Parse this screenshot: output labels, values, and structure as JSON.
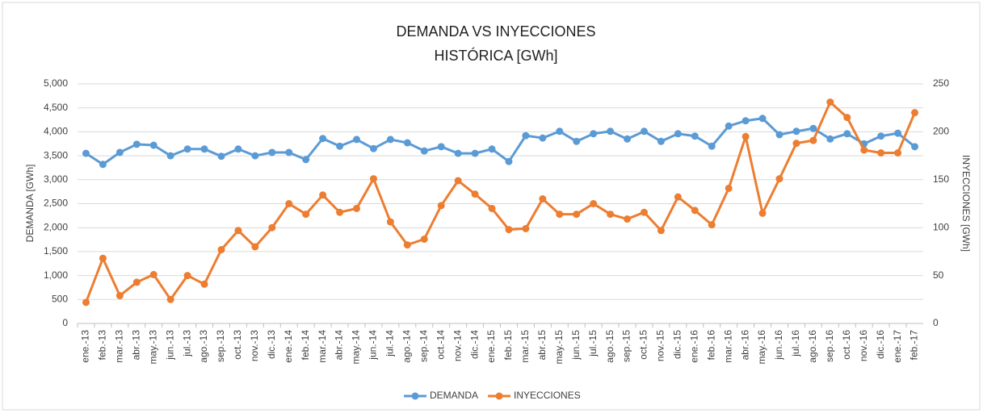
{
  "chart_data": {
    "type": "line",
    "title": "DEMANDA VS INYECCIONES",
    "subtitle": "HISTÓRICA [GWh]",
    "y_label": "DEMANDA [GWh]",
    "y2_label": "INYECCIONES [GWh]",
    "categories": [
      "ene.-13",
      "feb.-13",
      "mar.-13",
      "abr.-13",
      "may.-13",
      "jun.-13",
      "jul.-13",
      "ago.-13",
      "sep.-13",
      "oct.-13",
      "nov.-13",
      "dic.-13",
      "ene.-14",
      "feb.-14",
      "mar.-14",
      "abr.-14",
      "may.-14",
      "jun.-14",
      "jul.-14",
      "ago.-14",
      "sep.-14",
      "oct.-14",
      "nov.-14",
      "dic.-14",
      "ene.-15",
      "feb.-15",
      "mar.-15",
      "abr.-15",
      "may.-15",
      "jun.-15",
      "jul.-15",
      "ago.-15",
      "sep.-15",
      "oct.-15",
      "nov.-15",
      "dic.-15",
      "ene.-16",
      "feb.-16",
      "mar.-16",
      "abr.-16",
      "may.-16",
      "jun.-16",
      "jul.-16",
      "ago.-16",
      "sep.-16",
      "oct.-16",
      "nov.-16",
      "dic.-16",
      "ene.-17",
      "feb.-17"
    ],
    "series": [
      {
        "name": "DEMANDA",
        "color": "#5b9bd5",
        "values": [
          3550,
          3320,
          3570,
          3740,
          3720,
          3500,
          3640,
          3640,
          3490,
          3640,
          3500,
          3570,
          3570,
          3420,
          3860,
          3700,
          3840,
          3650,
          3840,
          3770,
          3600,
          3690,
          3550,
          3550,
          3640,
          3380,
          3920,
          3870,
          4010,
          3800,
          3960,
          4010,
          3850,
          4010,
          3800,
          3960,
          3910,
          3700,
          4120,
          4230,
          4280,
          3940,
          4010,
          4070,
          3850,
          3960,
          3750,
          3910,
          3970,
          3690
        ]
      },
      {
        "name": "INYECCIONES",
        "color": "#ed7d31",
        "axis": "y2",
        "values": [
          22,
          68,
          29,
          43,
          51,
          25,
          50,
          41,
          77,
          97,
          80,
          100,
          125,
          114,
          134,
          116,
          120,
          151,
          106,
          82,
          88,
          123,
          149,
          135,
          120,
          98,
          99,
          130,
          114,
          114,
          125,
          114,
          109,
          116,
          97,
          132,
          118,
          103,
          141,
          195,
          115,
          151,
          188,
          191,
          231,
          215,
          181,
          178,
          178,
          220
        ]
      }
    ],
    "ylim": [
      0,
      5000
    ],
    "yticks": [
      0,
      500,
      {
        "value": 1000,
        "label": "1,000"
      },
      {
        "value": 1500,
        "label": "1,500"
      },
      {
        "value": 2000,
        "label": "2,000"
      },
      {
        "value": 2500,
        "label": "2,500"
      },
      {
        "value": 3000,
        "label": "3,000"
      },
      {
        "value": 3500,
        "label": "3,500"
      },
      {
        "value": 4000,
        "label": "4,000"
      },
      {
        "value": 4500,
        "label": "4,500"
      },
      {
        "value": 5000,
        "label": "5,000"
      }
    ],
    "y2lim": [
      0,
      250
    ],
    "y2ticks": [
      0,
      50,
      100,
      150,
      200,
      250
    ],
    "grid": true,
    "legend": "bottom"
  }
}
